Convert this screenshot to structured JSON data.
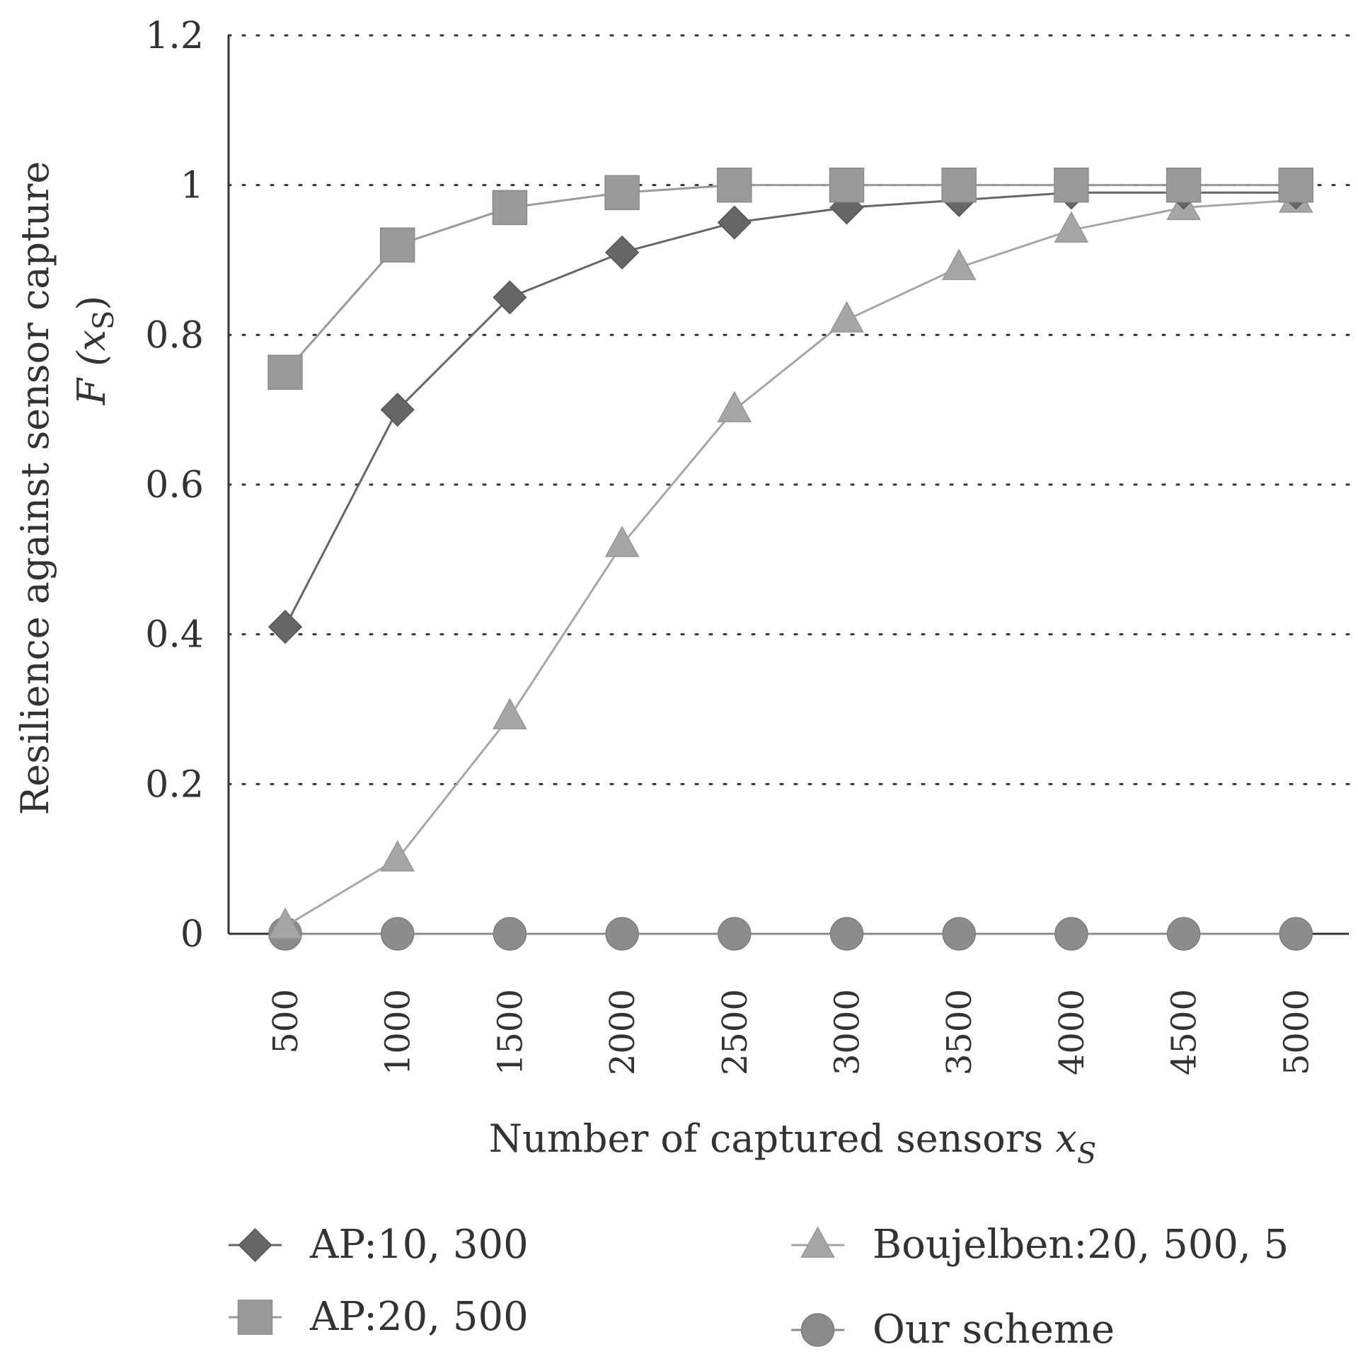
{
  "chart_data": {
    "type": "line",
    "x": [
      500,
      1000,
      1500,
      2000,
      2500,
      3000,
      3500,
      4000,
      4500,
      5000
    ],
    "x_tick_labels": [
      "500",
      "1000",
      "1500",
      "2000",
      "2500",
      "3000",
      "3500",
      "4000",
      "4500",
      "5000"
    ],
    "y_tick_labels": [
      "0",
      "0.2",
      "0.4",
      "0.6",
      "0.8",
      "1",
      "1.2"
    ],
    "ylim": [
      0,
      1.2
    ],
    "grid": "horizontal dotted",
    "ylabel_line1": "Resilience against sensor capture",
    "ylabel_line2_prefix": "F (x",
    "ylabel_line2_sub": "S",
    "ylabel_line2_suffix": ")",
    "xlabel_prefix": "Number of captured sensors ",
    "xlabel_var": "x",
    "xlabel_sub": "S",
    "legend_position": "bottom",
    "series": [
      {
        "name": "AP:10, 300",
        "marker": "diamond",
        "color": "#666666",
        "values": [
          0.41,
          0.7,
          0.85,
          0.91,
          0.95,
          0.97,
          0.98,
          0.99,
          0.99,
          0.99
        ]
      },
      {
        "name": "AP:20, 500",
        "marker": "square",
        "color": "#9a9a9a",
        "values": [
          0.75,
          0.92,
          0.97,
          0.99,
          1.0,
          1.0,
          1.0,
          1.0,
          1.0,
          1.0
        ]
      },
      {
        "name": "Boujelben:20, 500, 5",
        "marker": "triangle",
        "color": "#a6a6a6",
        "values": [
          0.01,
          0.1,
          0.29,
          0.52,
          0.7,
          0.82,
          0.89,
          0.94,
          0.97,
          0.98
        ]
      },
      {
        "name": "Our scheme",
        "marker": "circle",
        "color": "#8c8c8c",
        "values": [
          0,
          0,
          0,
          0,
          0,
          0,
          0,
          0,
          0,
          0
        ]
      }
    ]
  }
}
